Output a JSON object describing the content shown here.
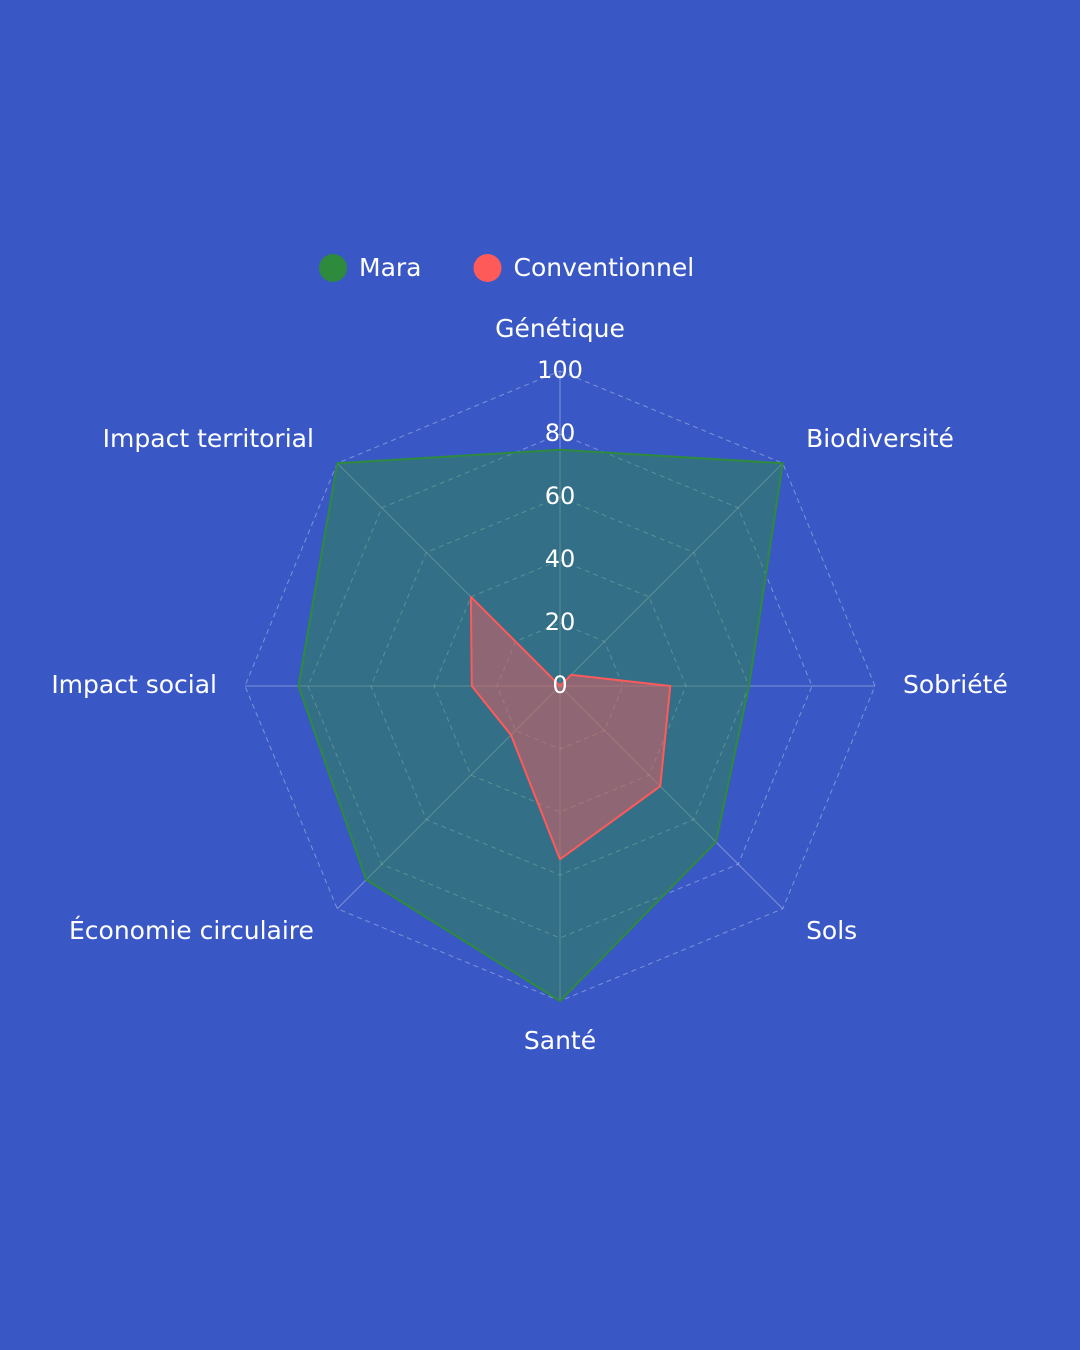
{
  "chart_data": {
    "type": "radar",
    "categories": [
      "Génétique",
      "Biodiversité",
      "Sobriété",
      "Sols",
      "Santé",
      "Économie circulaire",
      "Impact social",
      "Impact territorial"
    ],
    "series": [
      {
        "name": "Mara",
        "color": "#2e8b3e",
        "values": [
          75,
          100,
          60,
          70,
          100,
          87,
          83,
          100
        ]
      },
      {
        "name": "Conventionnel",
        "color": "#ff5a5a",
        "values": [
          0,
          5,
          35,
          45,
          55,
          22,
          28,
          40
        ]
      }
    ],
    "rlim": [
      0,
      100
    ],
    "rticks": [
      0,
      20,
      40,
      60,
      80,
      100
    ],
    "grid": true,
    "legend": "top"
  }
}
